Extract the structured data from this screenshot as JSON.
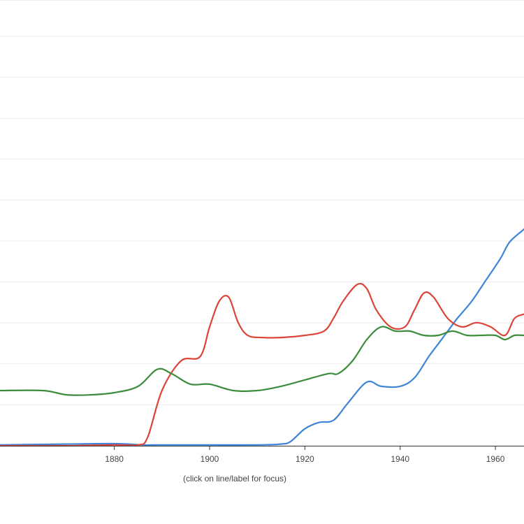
{
  "hint": "(click on line/label for focus)",
  "chart_data": {
    "type": "line",
    "title": "",
    "xlabel": "",
    "ylabel": "",
    "xlim": [
      1856,
      1966
    ],
    "ylim": [
      0,
      10.5
    ],
    "grid": true,
    "x_ticks": [
      1880,
      1900,
      1920,
      1940,
      1960
    ],
    "series": [
      {
        "color": "#3d85d8",
        "x": [
          1856,
          1870,
          1880,
          1886,
          1890,
          1900,
          1910,
          1915,
          1917,
          1920,
          1923,
          1926,
          1929,
          1933,
          1936,
          1940,
          1943,
          1946,
          1948,
          1950,
          1952,
          1955,
          1958,
          1961,
          1963,
          1966
        ],
        "y": [
          0.02,
          0.04,
          0.05,
          0.02,
          0.02,
          0.02,
          0.02,
          0.04,
          0.1,
          0.4,
          0.55,
          0.6,
          1.0,
          1.5,
          1.4,
          1.4,
          1.6,
          2.1,
          2.4,
          2.7,
          3.0,
          3.4,
          3.9,
          4.4,
          4.8,
          5.1
        ]
      },
      {
        "color": "#db4437",
        "x": [
          1856,
          1870,
          1880,
          1885,
          1887,
          1890,
          1894,
          1898,
          1900,
          1902,
          1904,
          1906,
          1908,
          1911,
          1915,
          1920,
          1924,
          1926,
          1928,
          1931,
          1933,
          1935,
          1938,
          1941,
          1943,
          1945,
          1947,
          1950,
          1953,
          1956,
          1959,
          1962,
          1964,
          1966
        ],
        "y": [
          0.0,
          0.0,
          0.02,
          0.02,
          0.2,
          1.3,
          2.0,
          2.1,
          2.8,
          3.4,
          3.5,
          2.9,
          2.6,
          2.55,
          2.55,
          2.6,
          2.7,
          3.0,
          3.4,
          3.8,
          3.7,
          3.2,
          2.8,
          2.8,
          3.2,
          3.6,
          3.5,
          3.0,
          2.8,
          2.9,
          2.8,
          2.6,
          3.0,
          3.1
        ]
      },
      {
        "color": "#3b8c3b",
        "x": [
          1856,
          1865,
          1870,
          1875,
          1880,
          1885,
          1889,
          1892,
          1896,
          1900,
          1905,
          1910,
          1915,
          1920,
          1925,
          1927,
          1930,
          1933,
          1936,
          1939,
          1942,
          1945,
          1948,
          1951,
          1954,
          1957,
          1960,
          1962,
          1964,
          1966
        ],
        "y": [
          1.3,
          1.3,
          1.2,
          1.2,
          1.25,
          1.4,
          1.8,
          1.7,
          1.45,
          1.45,
          1.3,
          1.3,
          1.4,
          1.55,
          1.7,
          1.7,
          2.0,
          2.5,
          2.8,
          2.7,
          2.7,
          2.6,
          2.6,
          2.7,
          2.6,
          2.6,
          2.6,
          2.5,
          2.6,
          2.6
        ]
      }
    ]
  }
}
